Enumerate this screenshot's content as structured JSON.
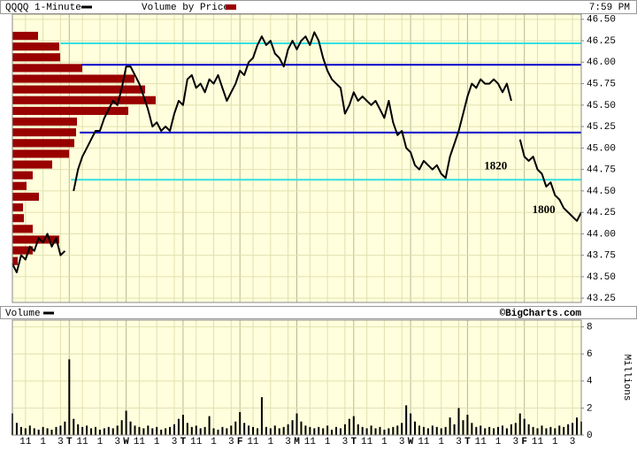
{
  "chart_data": [
    {
      "type": "line",
      "time": "7:59 PM",
      "x": [
        0,
        0.5,
        1,
        1.5,
        2,
        2.5,
        3,
        3.5,
        4,
        4.5,
        5,
        5.5,
        6,
        6.5,
        7,
        7.5,
        8,
        8.5,
        9,
        9.5,
        10,
        10.5,
        11,
        11.5,
        12,
        12.5,
        13,
        13.5,
        14,
        14.5,
        15,
        15.5,
        16,
        16.5,
        17,
        17.5,
        18,
        18.5,
        19,
        19.5,
        20,
        20.5,
        21,
        21.5,
        22,
        22.5,
        23,
        23.5,
        24,
        24.5,
        25,
        25.5,
        26,
        26.5,
        27,
        27.5,
        28,
        28.5,
        29,
        29.5,
        30,
        30.5,
        31,
        31.5,
        32,
        32.5,
        33,
        33.5,
        34,
        34.5,
        35,
        35.5,
        36,
        36.5,
        37,
        37.5,
        38,
        38.5,
        39,
        39.5,
        40,
        40.5,
        41,
        41.5,
        42,
        42.5,
        43,
        43.5,
        44,
        44.5,
        45,
        45.5,
        46,
        46.5,
        47,
        47.5,
        48,
        48.5,
        49,
        49.5,
        50,
        50.5,
        51,
        51.5,
        52,
        52.5,
        53,
        53.5,
        54,
        54.5,
        55,
        55.5,
        56,
        56.5,
        57,
        57.5,
        58,
        58.5,
        59,
        59.5,
        60,
        60.5,
        61,
        61.5,
        62,
        62.5,
        63,
        63.5,
        64,
        64.5,
        65
      ],
      "xlim": [
        0,
        65
      ],
      "ylim": [
        43.2,
        46.56
      ],
      "yticks": [
        {
          "value": 43.25,
          "label": "43.25"
        },
        {
          "value": 43.5,
          "label": "43.50"
        },
        {
          "value": 43.75,
          "label": "43.75"
        },
        {
          "value": 44,
          "label": "44.00"
        },
        {
          "value": 44.25,
          "label": "44.25"
        },
        {
          "value": 44.5,
          "label": "44.50"
        },
        {
          "value": 44.75,
          "label": "44.75"
        },
        {
          "value": 45,
          "label": "45.00"
        },
        {
          "value": 45.25,
          "label": "45.25"
        },
        {
          "value": 45.5,
          "label": "45.50"
        },
        {
          "value": 45.75,
          "label": "45.75"
        },
        {
          "value": 46,
          "label": "46.00"
        },
        {
          "value": 46.25,
          "label": "46.25"
        },
        {
          "value": 46.5,
          "label": "46.50"
        }
      ],
      "grid": true,
      "series": [
        {
          "name": "QQQQ 1-Minute",
          "color": "#000000",
          "values": [
            43.65,
            43.55,
            43.75,
            43.7,
            43.85,
            43.8,
            43.95,
            43.9,
            44.0,
            43.85,
            43.95,
            43.75,
            43.8,
            null,
            44.5,
            44.75,
            44.9,
            45.0,
            45.1,
            45.2,
            45.2,
            45.35,
            45.45,
            45.55,
            45.5,
            45.7,
            45.95,
            45.95,
            45.85,
            45.75,
            45.6,
            45.45,
            45.25,
            45.3,
            45.2,
            45.25,
            45.2,
            45.4,
            45.55,
            45.5,
            45.8,
            45.85,
            45.7,
            45.75,
            45.65,
            45.8,
            45.75,
            45.85,
            45.7,
            45.55,
            45.65,
            45.75,
            45.9,
            45.85,
            46.0,
            46.05,
            46.2,
            46.3,
            46.2,
            46.25,
            46.1,
            46.05,
            45.95,
            46.15,
            46.25,
            46.15,
            46.25,
            46.3,
            46.2,
            46.35,
            46.25,
            46.05,
            45.9,
            45.8,
            45.75,
            45.7,
            45.4,
            45.5,
            45.65,
            45.55,
            45.6,
            45.55,
            45.5,
            45.55,
            45.45,
            45.35,
            45.55,
            45.3,
            45.15,
            45.2,
            45.0,
            44.95,
            44.8,
            44.75,
            44.85,
            44.8,
            44.75,
            44.8,
            44.7,
            44.65,
            44.9,
            45.05,
            45.2,
            45.4,
            45.6,
            45.75,
            45.7,
            45.8,
            45.75,
            45.75,
            45.8,
            45.75,
            45.65,
            45.75,
            45.55,
            null,
            45.1,
            44.9,
            44.85,
            44.9,
            44.75,
            44.7,
            44.55,
            44.6,
            44.45,
            44.4,
            44.3,
            44.25,
            44.2,
            44.15,
            44.25
          ]
        }
      ],
      "volume_by_price": {
        "name": "Volume by Price",
        "color": "#990000",
        "bins": [
          43.625,
          43.75,
          43.875,
          44.0,
          44.125,
          44.25,
          44.375,
          44.5,
          44.625,
          44.75,
          44.875,
          45.0,
          45.125,
          45.25,
          45.375,
          45.5,
          45.625,
          45.75,
          45.875,
          46.0,
          46.125,
          46.25,
          46.375
        ],
        "values": [
          6,
          23,
          53,
          23,
          13,
          12,
          30,
          16,
          23,
          45,
          64,
          70,
          72,
          73,
          131,
          162,
          150,
          138,
          79,
          54,
          53,
          29
        ]
      },
      "levels": [
        {
          "value": 46.22,
          "color": "#33e0e0",
          "start": 5.5
        },
        {
          "value": 45.97,
          "color": "#0000cc",
          "start": 7.9
        },
        {
          "value": 45.18,
          "color": "#0000cc",
          "start": 7.7
        },
        {
          "value": 44.63,
          "color": "#33e0e0",
          "start": 6.7
        }
      ],
      "annotations": [
        {
          "text": "1820",
          "x": 53.9,
          "y": 44.78
        },
        {
          "text": "1800",
          "x": 59.4,
          "y": 44.27
        }
      ]
    },
    {
      "type": "bar",
      "title": "Volume",
      "credit": "©BigCharts.com",
      "ylabel": "Millions",
      "x": [
        0,
        0.5,
        1,
        1.5,
        2,
        2.5,
        3,
        3.5,
        4,
        4.5,
        5,
        5.5,
        6,
        6.5,
        7,
        7.5,
        8,
        8.5,
        9,
        9.5,
        10,
        10.5,
        11,
        11.5,
        12,
        12.5,
        13,
        13.5,
        14,
        14.5,
        15,
        15.5,
        16,
        16.5,
        17,
        17.5,
        18,
        18.5,
        19,
        19.5,
        20,
        20.5,
        21,
        21.5,
        22,
        22.5,
        23,
        23.5,
        24,
        24.5,
        25,
        25.5,
        26,
        26.5,
        27,
        27.5,
        28,
        28.5,
        29,
        29.5,
        30,
        30.5,
        31,
        31.5,
        32,
        32.5,
        33,
        33.5,
        34,
        34.5,
        35,
        35.5,
        36,
        36.5,
        37,
        37.5,
        38,
        38.5,
        39,
        39.5,
        40,
        40.5,
        41,
        41.5,
        42,
        42.5,
        43,
        43.5,
        44,
        44.5,
        45,
        45.5,
        46,
        46.5,
        47,
        47.5,
        48,
        48.5,
        49,
        49.5,
        50,
        50.5,
        51,
        51.5,
        52,
        52.5,
        53,
        53.5,
        54,
        54.5,
        55,
        55.5,
        56,
        56.5,
        57,
        57.5,
        58,
        58.5,
        59,
        59.5,
        60,
        60.5,
        61,
        61.5,
        62,
        62.5,
        63,
        63.5,
        64,
        64.5,
        65
      ],
      "xlim": [
        0,
        65
      ],
      "xticks": [
        {
          "value": 1.5,
          "label": "11"
        },
        {
          "value": 3.5,
          "label": "1"
        },
        {
          "value": 5.5,
          "label": "3"
        },
        {
          "value": 6.5,
          "label": "T"
        },
        {
          "value": 8,
          "label": "11"
        },
        {
          "value": 10,
          "label": "1"
        },
        {
          "value": 12,
          "label": "3"
        },
        {
          "value": 13,
          "label": "W"
        },
        {
          "value": 14.5,
          "label": "11"
        },
        {
          "value": 16.5,
          "label": "1"
        },
        {
          "value": 18.5,
          "label": "3"
        },
        {
          "value": 19.5,
          "label": "T"
        },
        {
          "value": 21,
          "label": "11"
        },
        {
          "value": 23,
          "label": "1"
        },
        {
          "value": 25,
          "label": "3"
        },
        {
          "value": 26,
          "label": "F"
        },
        {
          "value": 27.5,
          "label": "11"
        },
        {
          "value": 29.5,
          "label": "1"
        },
        {
          "value": 31.5,
          "label": "3"
        },
        {
          "value": 32.5,
          "label": "M"
        },
        {
          "value": 34,
          "label": "11"
        },
        {
          "value": 36,
          "label": "1"
        },
        {
          "value": 38,
          "label": "3"
        },
        {
          "value": 39,
          "label": "T"
        },
        {
          "value": 40.5,
          "label": "11"
        },
        {
          "value": 42.5,
          "label": "1"
        },
        {
          "value": 44.5,
          "label": "3"
        },
        {
          "value": 45.5,
          "label": "W"
        },
        {
          "value": 47,
          "label": "11"
        },
        {
          "value": 49,
          "label": "1"
        },
        {
          "value": 51,
          "label": "3"
        },
        {
          "value": 52,
          "label": "T"
        },
        {
          "value": 53.5,
          "label": "11"
        },
        {
          "value": 55.5,
          "label": "1"
        },
        {
          "value": 57.5,
          "label": "3"
        },
        {
          "value": 58.5,
          "label": "F"
        },
        {
          "value": 60,
          "label": "11"
        },
        {
          "value": 62,
          "label": "1"
        },
        {
          "value": 64,
          "label": "3"
        }
      ],
      "ylim": [
        0,
        8.5
      ],
      "yticks": [
        0,
        2,
        4,
        6,
        8
      ],
      "grid": true,
      "series": [
        {
          "name": "Volume",
          "color": "#000000",
          "values": [
            1.6,
            0.9,
            0.6,
            0.5,
            0.7,
            0.5,
            0.4,
            0.6,
            0.5,
            0.4,
            0.6,
            0.7,
            1.0,
            5.6,
            1.2,
            0.8,
            0.6,
            0.7,
            0.5,
            0.6,
            0.4,
            0.5,
            0.6,
            0.5,
            0.7,
            1.1,
            1.8,
            1.0,
            0.7,
            0.6,
            0.5,
            0.7,
            0.5,
            0.6,
            0.4,
            0.5,
            0.6,
            0.8,
            1.2,
            1.5,
            0.9,
            0.6,
            0.7,
            0.5,
            0.6,
            1.4,
            0.5,
            0.4,
            0.6,
            0.5,
            0.7,
            1.0,
            1.7,
            0.9,
            0.7,
            0.6,
            0.5,
            2.8,
            0.6,
            0.5,
            0.7,
            0.5,
            0.6,
            0.8,
            1.1,
            1.6,
            1.0,
            0.7,
            0.6,
            0.5,
            0.6,
            0.5,
            0.7,
            0.4,
            0.6,
            0.5,
            0.8,
            1.2,
            1.4,
            0.8,
            0.6,
            0.5,
            0.7,
            0.5,
            0.6,
            0.4,
            0.5,
            0.6,
            0.7,
            0.9,
            2.2,
            1.6,
            1.0,
            0.7,
            0.6,
            0.5,
            0.7,
            0.6,
            0.5,
            0.6,
            1.3,
            0.8,
            2.0,
            1.1,
            1.5,
            0.9,
            0.6,
            0.7,
            0.5,
            0.6,
            0.5,
            0.6,
            0.7,
            0.5,
            0.8,
            0.9,
            1.6,
            1.2,
            0.8,
            0.6,
            0.5,
            0.7,
            0.5,
            0.6,
            0.5,
            0.7,
            0.6,
            0.8,
            0.9,
            1.3,
            1.0
          ]
        }
      ]
    }
  ]
}
